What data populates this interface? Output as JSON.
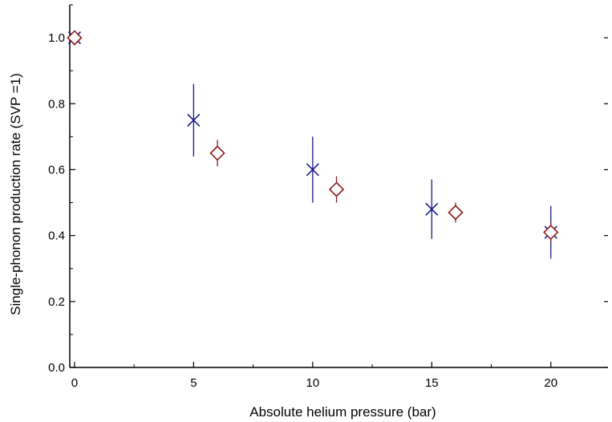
{
  "chart_data": {
    "type": "scatter",
    "title": "",
    "xlabel": "Absolute helium pressure (bar)",
    "ylabel": "Single-phonon production rate (SVP =1)",
    "xlim": [
      -0.2,
      22.4
    ],
    "ylim": [
      0.0,
      1.1
    ],
    "x_ticks": [
      "0",
      "5",
      "10",
      "15",
      "20"
    ],
    "x_tick_values": [
      0,
      5,
      10,
      15,
      20
    ],
    "y_ticks": [
      "0.0",
      "0.2",
      "0.4",
      "0.6",
      "0.8",
      "1.0"
    ],
    "y_tick_values": [
      0.0,
      0.2,
      0.4,
      0.6,
      0.8,
      1.0
    ],
    "grid": false,
    "series": [
      {
        "marker": "x",
        "color": "#1a1a8c",
        "points": [
          {
            "x": 0,
            "y": 1.0,
            "err": 0.0
          },
          {
            "x": 5,
            "y": 0.75,
            "err": 0.11
          },
          {
            "x": 10,
            "y": 0.6,
            "err": 0.1
          },
          {
            "x": 15,
            "y": 0.48,
            "err": 0.09
          },
          {
            "x": 20,
            "y": 0.41,
            "err": 0.08
          }
        ]
      },
      {
        "marker": "diamond",
        "color": "#8b1a1a",
        "points": [
          {
            "x": 0,
            "y": 1.0,
            "err": 0.0
          },
          {
            "x": 6,
            "y": 0.65,
            "err": 0.04
          },
          {
            "x": 11,
            "y": 0.54,
            "err": 0.04
          },
          {
            "x": 16,
            "y": 0.47,
            "err": 0.03
          },
          {
            "x": 20,
            "y": 0.41,
            "err": 0.03
          }
        ]
      }
    ]
  }
}
